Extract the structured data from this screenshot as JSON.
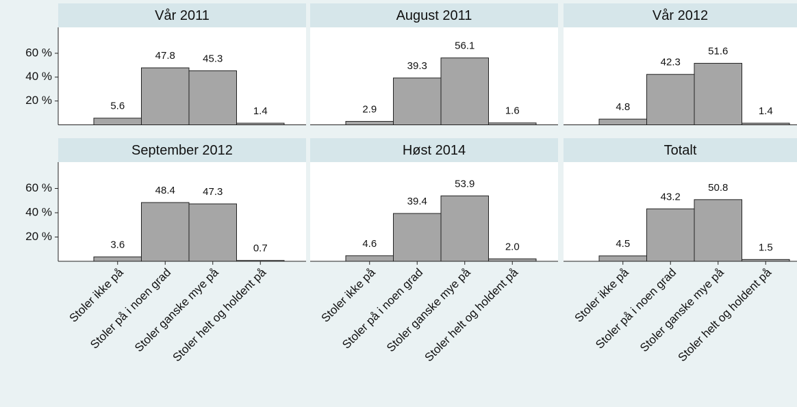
{
  "chart_data": [
    {
      "type": "bar",
      "title": "Vår 2011",
      "values": [
        5.6,
        47.8,
        45.3,
        1.4
      ],
      "color": "#a6a6a6",
      "ylim": [
        0,
        80
      ],
      "yticks": [
        {
          "value": 20,
          "label": "20 %"
        },
        {
          "value": 40,
          "label": "40 %"
        },
        {
          "value": 60,
          "label": "60 %"
        }
      ]
    },
    {
      "type": "bar",
      "title": "August 2011",
      "values": [
        2.9,
        39.3,
        56.1,
        1.6
      ],
      "color": "#a6a6a6",
      "ylim": [
        0,
        80
      ]
    },
    {
      "type": "bar",
      "title": "Vår 2012",
      "values": [
        4.8,
        42.3,
        51.6,
        1.4
      ],
      "color": "#a6a6a6",
      "ylim": [
        0,
        80
      ]
    },
    {
      "type": "bar",
      "title": "September 2012",
      "categories": [
        "Stoler ikke på",
        "Stoler på i noen grad",
        "Stoler ganske mye på",
        "Stoler helt og holdent på"
      ],
      "values": [
        3.6,
        48.4,
        47.3,
        0.7
      ],
      "color": "#a6a6a6",
      "ylim": [
        0,
        80
      ],
      "yticks": [
        {
          "value": 20,
          "label": "20 %"
        },
        {
          "value": 40,
          "label": "40 %"
        },
        {
          "value": 60,
          "label": "60 %"
        }
      ]
    },
    {
      "type": "bar",
      "title": "Høst 2014",
      "categories": [
        "Stoler ikke på",
        "Stoler på i noen grad",
        "Stoler ganske mye på",
        "Stoler helt og holdent på"
      ],
      "values": [
        4.6,
        39.4,
        53.9,
        2.0
      ],
      "value_labels": [
        "4.6",
        "39.4",
        "53.9",
        "2.0"
      ],
      "color": "#a6a6a6",
      "ylim": [
        0,
        80
      ]
    },
    {
      "type": "bar",
      "title": "Totalt",
      "categories": [
        "Stoler ikke på",
        "Stoler på i noen grad",
        "Stoler ganske mye på",
        "Stoler helt og holdent på"
      ],
      "values": [
        4.5,
        43.2,
        50.8,
        1.5
      ],
      "color": "#a6a6a6",
      "ylim": [
        0,
        80
      ]
    }
  ]
}
